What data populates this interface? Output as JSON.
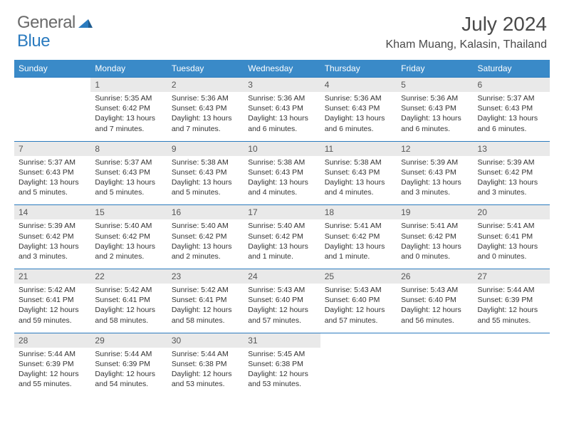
{
  "logo": {
    "part1": "General",
    "part2": "Blue"
  },
  "title": "July 2024",
  "location": "Kham Muang, Kalasin, Thailand",
  "colors": {
    "header_bg": "#3a8ac8",
    "header_text": "#ffffff",
    "daynum_bg": "#e9e9e9",
    "daynum_text": "#555555",
    "border": "#2b7bbf",
    "logo_gray": "#6a6a6a",
    "logo_blue": "#2b7bbf",
    "body_text": "#333333"
  },
  "dow": [
    "Sunday",
    "Monday",
    "Tuesday",
    "Wednesday",
    "Thursday",
    "Friday",
    "Saturday"
  ],
  "weeks": [
    [
      {
        "n": "",
        "sr": "",
        "ss": "",
        "dl": ""
      },
      {
        "n": "1",
        "sr": "Sunrise: 5:35 AM",
        "ss": "Sunset: 6:42 PM",
        "dl": "Daylight: 13 hours and 7 minutes."
      },
      {
        "n": "2",
        "sr": "Sunrise: 5:36 AM",
        "ss": "Sunset: 6:43 PM",
        "dl": "Daylight: 13 hours and 7 minutes."
      },
      {
        "n": "3",
        "sr": "Sunrise: 5:36 AM",
        "ss": "Sunset: 6:43 PM",
        "dl": "Daylight: 13 hours and 6 minutes."
      },
      {
        "n": "4",
        "sr": "Sunrise: 5:36 AM",
        "ss": "Sunset: 6:43 PM",
        "dl": "Daylight: 13 hours and 6 minutes."
      },
      {
        "n": "5",
        "sr": "Sunrise: 5:36 AM",
        "ss": "Sunset: 6:43 PM",
        "dl": "Daylight: 13 hours and 6 minutes."
      },
      {
        "n": "6",
        "sr": "Sunrise: 5:37 AM",
        "ss": "Sunset: 6:43 PM",
        "dl": "Daylight: 13 hours and 6 minutes."
      }
    ],
    [
      {
        "n": "7",
        "sr": "Sunrise: 5:37 AM",
        "ss": "Sunset: 6:43 PM",
        "dl": "Daylight: 13 hours and 5 minutes."
      },
      {
        "n": "8",
        "sr": "Sunrise: 5:37 AM",
        "ss": "Sunset: 6:43 PM",
        "dl": "Daylight: 13 hours and 5 minutes."
      },
      {
        "n": "9",
        "sr": "Sunrise: 5:38 AM",
        "ss": "Sunset: 6:43 PM",
        "dl": "Daylight: 13 hours and 5 minutes."
      },
      {
        "n": "10",
        "sr": "Sunrise: 5:38 AM",
        "ss": "Sunset: 6:43 PM",
        "dl": "Daylight: 13 hours and 4 minutes."
      },
      {
        "n": "11",
        "sr": "Sunrise: 5:38 AM",
        "ss": "Sunset: 6:43 PM",
        "dl": "Daylight: 13 hours and 4 minutes."
      },
      {
        "n": "12",
        "sr": "Sunrise: 5:39 AM",
        "ss": "Sunset: 6:43 PM",
        "dl": "Daylight: 13 hours and 3 minutes."
      },
      {
        "n": "13",
        "sr": "Sunrise: 5:39 AM",
        "ss": "Sunset: 6:42 PM",
        "dl": "Daylight: 13 hours and 3 minutes."
      }
    ],
    [
      {
        "n": "14",
        "sr": "Sunrise: 5:39 AM",
        "ss": "Sunset: 6:42 PM",
        "dl": "Daylight: 13 hours and 3 minutes."
      },
      {
        "n": "15",
        "sr": "Sunrise: 5:40 AM",
        "ss": "Sunset: 6:42 PM",
        "dl": "Daylight: 13 hours and 2 minutes."
      },
      {
        "n": "16",
        "sr": "Sunrise: 5:40 AM",
        "ss": "Sunset: 6:42 PM",
        "dl": "Daylight: 13 hours and 2 minutes."
      },
      {
        "n": "17",
        "sr": "Sunrise: 5:40 AM",
        "ss": "Sunset: 6:42 PM",
        "dl": "Daylight: 13 hours and 1 minute."
      },
      {
        "n": "18",
        "sr": "Sunrise: 5:41 AM",
        "ss": "Sunset: 6:42 PM",
        "dl": "Daylight: 13 hours and 1 minute."
      },
      {
        "n": "19",
        "sr": "Sunrise: 5:41 AM",
        "ss": "Sunset: 6:42 PM",
        "dl": "Daylight: 13 hours and 0 minutes."
      },
      {
        "n": "20",
        "sr": "Sunrise: 5:41 AM",
        "ss": "Sunset: 6:41 PM",
        "dl": "Daylight: 13 hours and 0 minutes."
      }
    ],
    [
      {
        "n": "21",
        "sr": "Sunrise: 5:42 AM",
        "ss": "Sunset: 6:41 PM",
        "dl": "Daylight: 12 hours and 59 minutes."
      },
      {
        "n": "22",
        "sr": "Sunrise: 5:42 AM",
        "ss": "Sunset: 6:41 PM",
        "dl": "Daylight: 12 hours and 58 minutes."
      },
      {
        "n": "23",
        "sr": "Sunrise: 5:42 AM",
        "ss": "Sunset: 6:41 PM",
        "dl": "Daylight: 12 hours and 58 minutes."
      },
      {
        "n": "24",
        "sr": "Sunrise: 5:43 AM",
        "ss": "Sunset: 6:40 PM",
        "dl": "Daylight: 12 hours and 57 minutes."
      },
      {
        "n": "25",
        "sr": "Sunrise: 5:43 AM",
        "ss": "Sunset: 6:40 PM",
        "dl": "Daylight: 12 hours and 57 minutes."
      },
      {
        "n": "26",
        "sr": "Sunrise: 5:43 AM",
        "ss": "Sunset: 6:40 PM",
        "dl": "Daylight: 12 hours and 56 minutes."
      },
      {
        "n": "27",
        "sr": "Sunrise: 5:44 AM",
        "ss": "Sunset: 6:39 PM",
        "dl": "Daylight: 12 hours and 55 minutes."
      }
    ],
    [
      {
        "n": "28",
        "sr": "Sunrise: 5:44 AM",
        "ss": "Sunset: 6:39 PM",
        "dl": "Daylight: 12 hours and 55 minutes."
      },
      {
        "n": "29",
        "sr": "Sunrise: 5:44 AM",
        "ss": "Sunset: 6:39 PM",
        "dl": "Daylight: 12 hours and 54 minutes."
      },
      {
        "n": "30",
        "sr": "Sunrise: 5:44 AM",
        "ss": "Sunset: 6:38 PM",
        "dl": "Daylight: 12 hours and 53 minutes."
      },
      {
        "n": "31",
        "sr": "Sunrise: 5:45 AM",
        "ss": "Sunset: 6:38 PM",
        "dl": "Daylight: 12 hours and 53 minutes."
      },
      {
        "n": "",
        "sr": "",
        "ss": "",
        "dl": ""
      },
      {
        "n": "",
        "sr": "",
        "ss": "",
        "dl": ""
      },
      {
        "n": "",
        "sr": "",
        "ss": "",
        "dl": ""
      }
    ]
  ]
}
